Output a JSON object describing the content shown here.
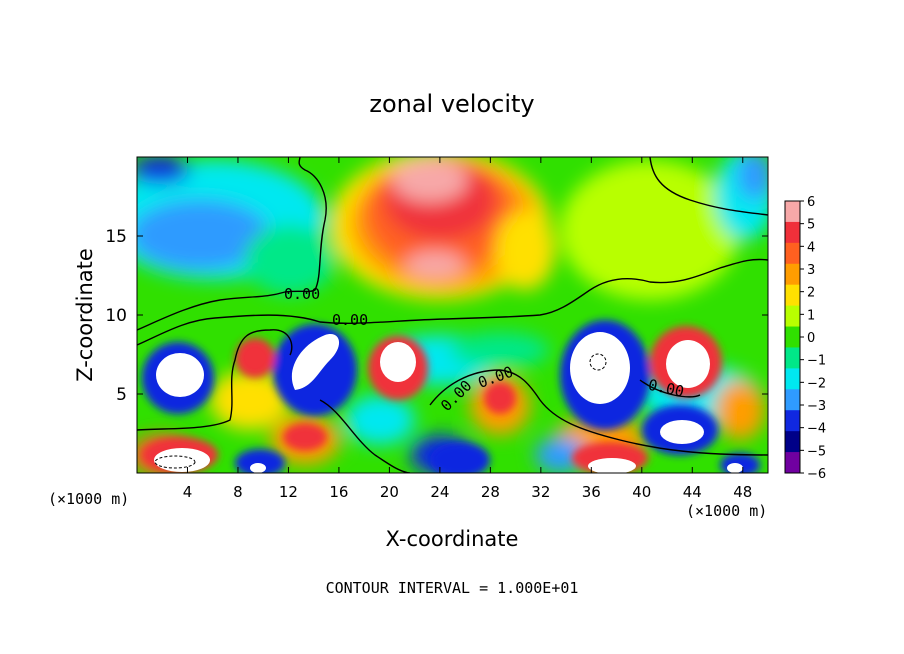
{
  "chart_data": {
    "type": "heatmap",
    "title": "zonal velocity",
    "xlabel": "X-coordinate",
    "ylabel": "Z-coordinate",
    "x_unit_label": "(×1000 m)",
    "x_unit_label_right": "(×1000 m)",
    "footer": "CONTOUR INTERVAL = 1.000E+01",
    "xlim": [
      0,
      50
    ],
    "ylim": [
      0,
      20
    ],
    "x_ticks": [
      "4",
      "8",
      "12",
      "16",
      "20",
      "24",
      "28",
      "32",
      "36",
      "40",
      "44",
      "48"
    ],
    "y_ticks": [
      "5",
      "10",
      "15"
    ],
    "colorbar": {
      "range": [
        -6,
        6
      ],
      "tick_labels": [
        "6",
        "5",
        "4",
        "3",
        "2",
        "1",
        "0",
        "−1",
        "−2",
        "−3",
        "−4",
        "−5",
        "−6"
      ],
      "colors": [
        "#f7a8a8",
        "#f0303a",
        "#ff6020",
        "#ff9d00",
        "#ffe000",
        "#b8ff00",
        "#30e000",
        "#00e888",
        "#00e8f0",
        "#2f9bff",
        "#1028e0",
        "#000088",
        "#7000a0"
      ]
    },
    "contour_labels": [
      "0.00",
      "0.00",
      "0.00",
      "0.00",
      "0.00"
    ]
  }
}
